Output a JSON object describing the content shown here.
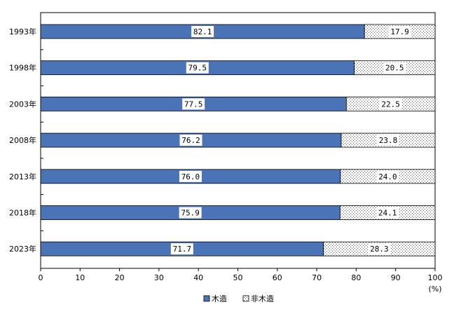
{
  "chart_data": {
    "type": "bar",
    "orientation": "horizontal",
    "stacked": true,
    "categories": [
      "1993年",
      "1998年",
      "2003年",
      "2008年",
      "2013年",
      "2018年",
      "2023年"
    ],
    "series": [
      {
        "name": "木造",
        "values": [
          82.1,
          79.5,
          77.5,
          76.2,
          76.0,
          75.9,
          71.7
        ],
        "color": "#4a74b5",
        "fill": "solid"
      },
      {
        "name": "非木造",
        "values": [
          17.9,
          20.5,
          22.5,
          23.8,
          24.0,
          24.1,
          28.3
        ],
        "color": "#ffffff",
        "fill": "dotted"
      }
    ],
    "value_labels": {
      "木造": [
        "82.1",
        "79.5",
        "77.5",
        "76.2",
        "76.0",
        "75.9",
        "71.7"
      ],
      "非木造": [
        "17.9",
        "20.5",
        "22.5",
        "23.8",
        "24.0",
        "24.1",
        "28.3"
      ]
    },
    "xlim": [
      0,
      100
    ],
    "xticks": [
      "0",
      "10",
      "20",
      "30",
      "40",
      "50",
      "60",
      "70",
      "80",
      "90",
      "100"
    ],
    "xunit": "(%)",
    "grid": false,
    "legend_position": "bottom-center"
  }
}
